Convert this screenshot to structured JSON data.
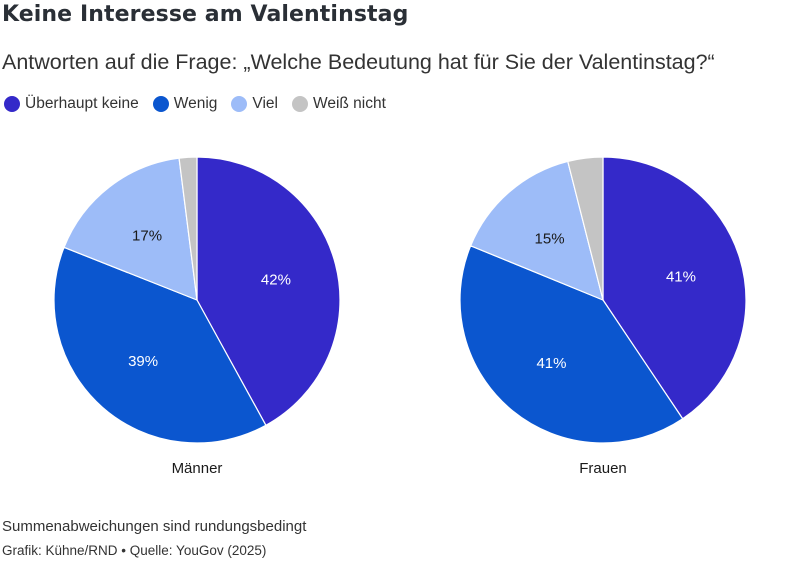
{
  "header": {
    "title": "Keine Interesse am Valentinstag",
    "subtitle": "Antworten auf die Frage: „Welche Bedeutung hat für Sie der Valentinstag?“"
  },
  "legend": [
    {
      "label": "Überhaupt keine",
      "color": "#3429c9"
    },
    {
      "label": "Wenig",
      "color": "#0b56cf"
    },
    {
      "label": "Viel",
      "color": "#9dbcf8"
    },
    {
      "label": "Weiß nicht",
      "color": "#c4c4c4"
    }
  ],
  "chart_data": [
    {
      "type": "pie",
      "label": "Männer",
      "slices": [
        {
          "name": "Überhaupt keine",
          "value": 42,
          "label": "42%",
          "color": "#3429c9",
          "label_color": "#ffffff"
        },
        {
          "name": "Wenig",
          "value": 39,
          "label": "39%",
          "color": "#0b56cf",
          "label_color": "#ffffff"
        },
        {
          "name": "Viel",
          "value": 17,
          "label": "17%",
          "color": "#9dbcf8",
          "label_color": "#1a1a1a"
        },
        {
          "name": "Weiß nicht",
          "value": 2,
          "label": "",
          "color": "#c4c4c4",
          "label_color": "#1a1a1a"
        }
      ]
    },
    {
      "type": "pie",
      "label": "Frauen",
      "slices": [
        {
          "name": "Überhaupt keine",
          "value": 41,
          "label": "41%",
          "color": "#3429c9",
          "label_color": "#ffffff"
        },
        {
          "name": "Wenig",
          "value": 41,
          "label": "41%",
          "color": "#0b56cf",
          "label_color": "#ffffff"
        },
        {
          "name": "Viel",
          "value": 15,
          "label": "15%",
          "color": "#9dbcf8",
          "label_color": "#1a1a1a"
        },
        {
          "name": "Weiß nicht",
          "value": 4,
          "label": "",
          "color": "#c4c4c4",
          "label_color": "#1a1a1a"
        }
      ]
    }
  ],
  "footer": {
    "note": "Summenabweichungen sind rundungsbedingt",
    "credit": "Grafik: Kühne/RND • Quelle: YouGov (2025)"
  }
}
